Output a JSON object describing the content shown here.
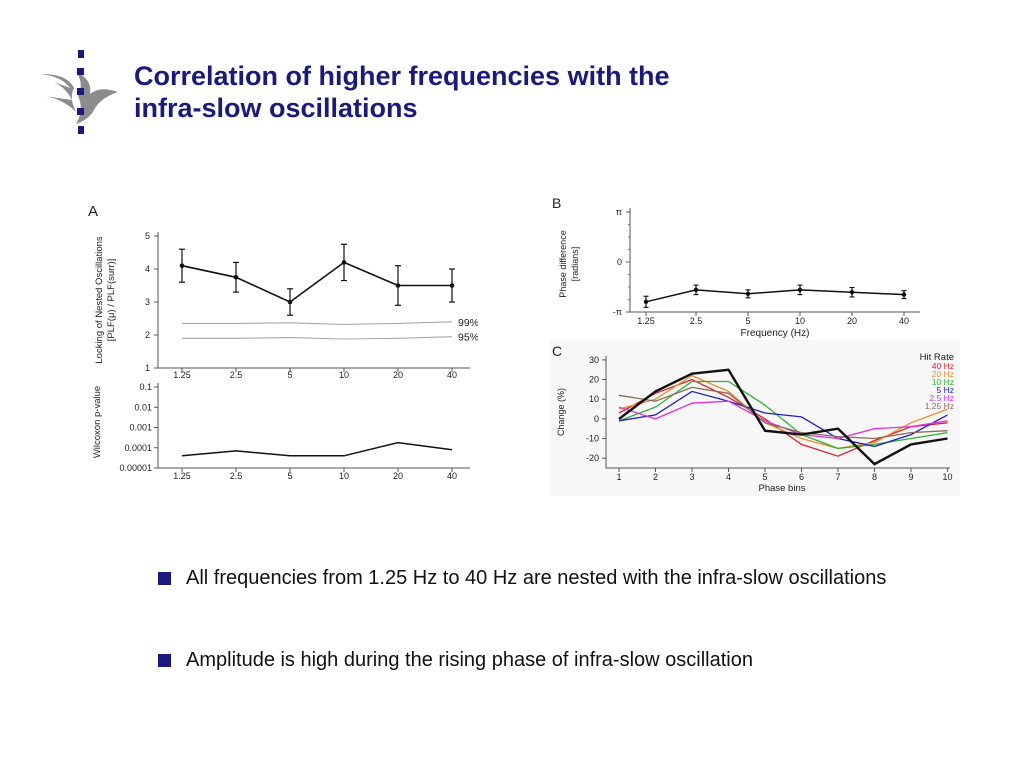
{
  "slide": {
    "title_lines": [
      "Correlation  of higher frequencies with the",
      "infra-slow oscillations"
    ],
    "bullets": [
      "All frequencies from 1.25 Hz to 40 Hz are nested with the infra-slow oscillations",
      "Amplitude is high during the rising phase of infra-slow oscillation"
    ],
    "colors": {
      "title": "#1a1a7e",
      "bullet": "#1a1a7e"
    },
    "logo_icon": "flame-crest-logo"
  },
  "chart_data": [
    {
      "panel": "A",
      "type": "line",
      "categories": [
        "1.25",
        "2.5",
        "5",
        "10",
        "20",
        "40"
      ],
      "ylabel": [
        "Locking of Nested Oscillations",
        "[PLF(μ) / PLF(surr)]"
      ],
      "yticks": [
        "1",
        "2",
        "3",
        "4",
        "5"
      ],
      "ylim": [
        1,
        5
      ],
      "values": [
        4.1,
        3.75,
        3.0,
        4.2,
        3.5,
        3.5
      ],
      "error": [
        0.5,
        0.45,
        0.4,
        0.55,
        0.6,
        0.5
      ],
      "reference_lines": [
        {
          "name": "99%-ile",
          "values": [
            2.35,
            2.35,
            2.37,
            2.32,
            2.35,
            2.4
          ]
        },
        {
          "name": "95%-ile",
          "values": [
            1.9,
            1.9,
            1.92,
            1.88,
            1.9,
            1.95
          ]
        }
      ],
      "grid": false
    },
    {
      "panel": "A-lower",
      "type": "line",
      "scale": "log",
      "categories": [
        "1.25",
        "2.5",
        "5",
        "10",
        "20",
        "40"
      ],
      "ylabel": "Wilcoxon p-value",
      "yticks": [
        "0.1",
        "0.01",
        "0.001",
        "0.0001",
        "0.00001"
      ],
      "ylim": [
        1e-05,
        0.1
      ],
      "values": [
        4e-05,
        7e-05,
        4e-05,
        4e-05,
        0.00018,
        8e-05
      ],
      "grid": false
    },
    {
      "panel": "B",
      "type": "line",
      "categories": [
        "1.25",
        "2.5",
        "5",
        "10",
        "20",
        "40"
      ],
      "xlabel": "Frequency (Hz)",
      "ylabel": [
        "Phase difference",
        "[radians]"
      ],
      "yticks": [
        "π",
        "0",
        "-π"
      ],
      "ylim": [
        -3.1416,
        3.1416
      ],
      "values": [
        -2.5,
        -1.75,
        -2.0,
        -1.75,
        -1.9,
        -2.05
      ],
      "error": [
        0.35,
        0.3,
        0.25,
        0.3,
        0.3,
        0.25
      ],
      "grid": false
    },
    {
      "panel": "C",
      "type": "line",
      "x": [
        1,
        2,
        3,
        4,
        5,
        6,
        7,
        8,
        9,
        10
      ],
      "xlabel": "Phase bins",
      "ylabel": "Change (%)",
      "yticks": [
        "30",
        "20",
        "10",
        "0",
        "-10",
        "-20"
      ],
      "ylim": [
        -25,
        32
      ],
      "legend_title": "Hit Rate",
      "legend_position": "top-right",
      "series": [
        {
          "name": "40 Hz",
          "color": "#e0202a",
          "values": [
            3,
            13,
            20,
            11,
            0,
            -13,
            -19,
            -11,
            -4,
            -2
          ]
        },
        {
          "name": "20 Hz",
          "color": "#f08c28",
          "values": [
            5,
            10,
            22,
            14,
            -2,
            -10,
            -15,
            -12,
            -2,
            5
          ]
        },
        {
          "name": "10 Hz",
          "color": "#2eb52e",
          "values": [
            -1,
            6,
            19,
            19,
            7,
            -8,
            -15,
            -13,
            -10,
            -7
          ]
        },
        {
          "name": "5 Hz",
          "color": "#2020c8",
          "values": [
            -1,
            2,
            14,
            9,
            3,
            1,
            -10,
            -14,
            -8,
            2
          ]
        },
        {
          "name": "2.5 Hz",
          "color": "#e030e0",
          "values": [
            6,
            0,
            8,
            9,
            -1,
            -8,
            -10,
            -5,
            -4,
            -1
          ]
        },
        {
          "name": "1.25 Hz",
          "color": "#8a6a5a",
          "values": [
            12,
            9,
            16,
            13,
            -2,
            -7,
            -9,
            -10,
            -7,
            -6
          ]
        },
        {
          "name": "",
          "color": "#111111",
          "width": 2.4,
          "values": [
            0,
            14,
            23,
            25,
            -6,
            -8,
            -5,
            -23,
            -13,
            -10
          ]
        }
      ],
      "grid": false
    }
  ]
}
